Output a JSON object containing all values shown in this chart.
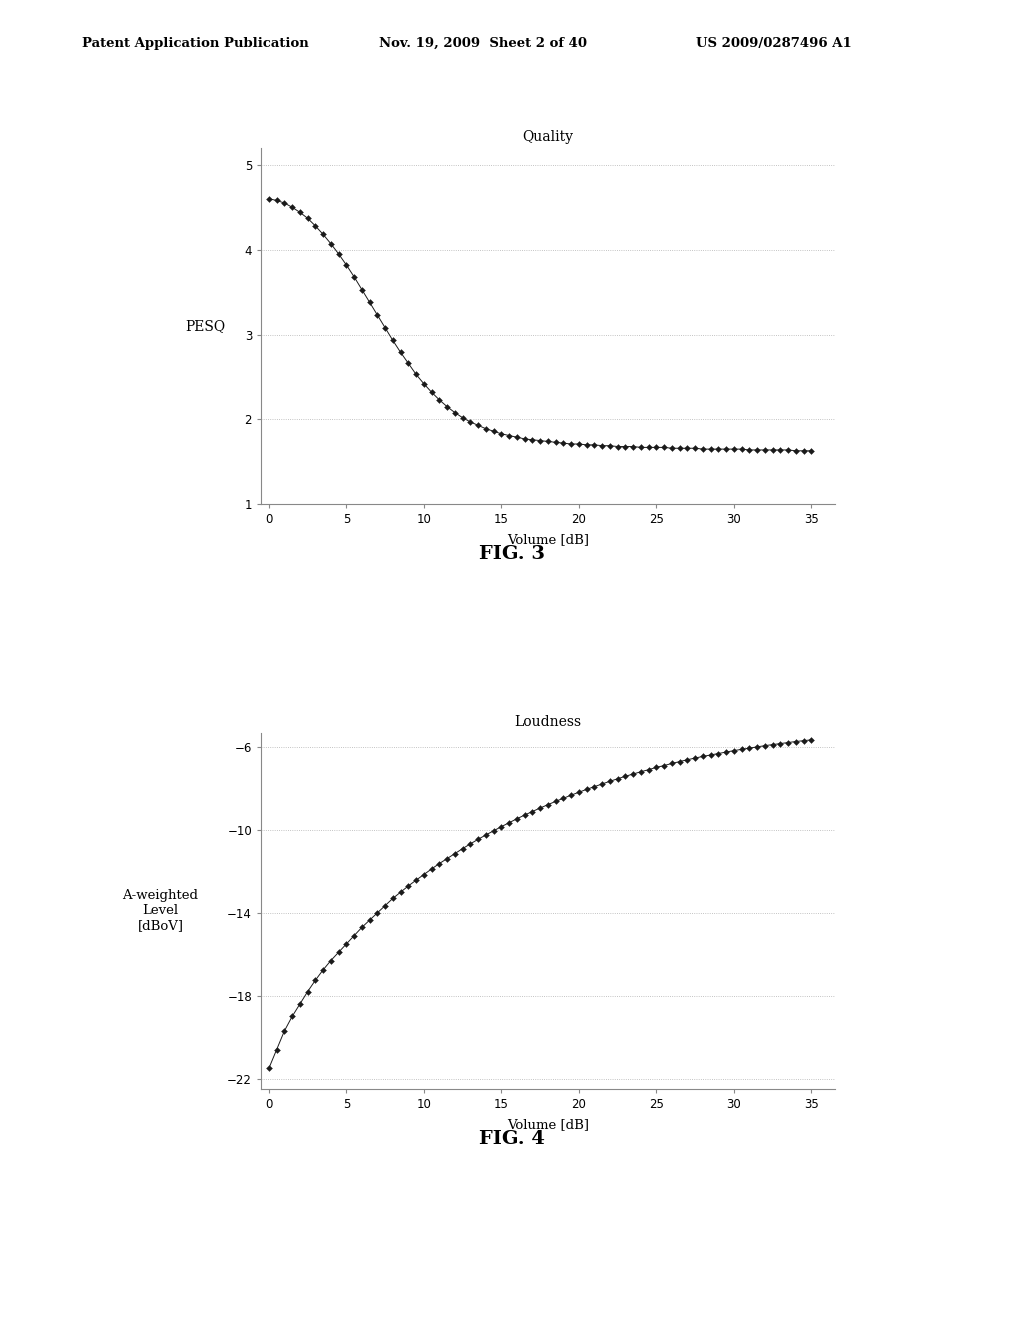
{
  "fig3": {
    "title": "Quality",
    "xlabel": "Volume [dB]",
    "ylabel": "PESQ",
    "xlim": [
      -0.5,
      36.5
    ],
    "ylim": [
      1,
      5.2
    ],
    "xticks": [
      0,
      5,
      10,
      15,
      20,
      25,
      30,
      35
    ],
    "yticks": [
      1,
      2,
      3,
      4,
      5
    ],
    "x": [
      0,
      0.5,
      1,
      1.5,
      2,
      2.5,
      3,
      3.5,
      4,
      4.5,
      5,
      5.5,
      6,
      6.5,
      7,
      7.5,
      8,
      8.5,
      9,
      9.5,
      10,
      10.5,
      11,
      11.5,
      12,
      12.5,
      13,
      13.5,
      14,
      14.5,
      15,
      15.5,
      16,
      16.5,
      17,
      17.5,
      18,
      18.5,
      19,
      19.5,
      20,
      20.5,
      21,
      21.5,
      22,
      22.5,
      23,
      23.5,
      24,
      24.5,
      25,
      25.5,
      26,
      26.5,
      27,
      27.5,
      28,
      28.5,
      29,
      29.5,
      30,
      30.5,
      31,
      31.5,
      32,
      32.5,
      33,
      33.5,
      34,
      34.5,
      35
    ],
    "y": [
      4.6,
      4.58,
      4.55,
      4.5,
      4.44,
      4.37,
      4.28,
      4.18,
      4.07,
      3.95,
      3.82,
      3.68,
      3.53,
      3.38,
      3.23,
      3.08,
      2.93,
      2.79,
      2.66,
      2.53,
      2.42,
      2.32,
      2.23,
      2.15,
      2.08,
      2.02,
      1.97,
      1.93,
      1.89,
      1.86,
      1.83,
      1.81,
      1.79,
      1.77,
      1.76,
      1.75,
      1.74,
      1.73,
      1.72,
      1.71,
      1.71,
      1.7,
      1.7,
      1.69,
      1.69,
      1.68,
      1.68,
      1.68,
      1.67,
      1.67,
      1.67,
      1.67,
      1.66,
      1.66,
      1.66,
      1.66,
      1.65,
      1.65,
      1.65,
      1.65,
      1.65,
      1.65,
      1.64,
      1.64,
      1.64,
      1.64,
      1.64,
      1.64,
      1.63,
      1.63,
      1.63
    ]
  },
  "fig4": {
    "title": "Loudness",
    "xlabel": "Volume [dB]",
    "ylabel": "A-weighted\nLevel\n[dBoV]",
    "xlim": [
      -0.5,
      36.5
    ],
    "ylim": [
      -22.5,
      -5.3
    ],
    "xticks": [
      0,
      5,
      10,
      15,
      20,
      25,
      30,
      35
    ],
    "yticks": [
      -22,
      -18,
      -14,
      -10,
      -6
    ],
    "x": [
      0,
      0.5,
      1,
      1.5,
      2,
      2.5,
      3,
      3.5,
      4,
      4.5,
      5,
      5.5,
      6,
      6.5,
      7,
      7.5,
      8,
      8.5,
      9,
      9.5,
      10,
      10.5,
      11,
      11.5,
      12,
      12.5,
      13,
      13.5,
      14,
      14.5,
      15,
      15.5,
      16,
      16.5,
      17,
      17.5,
      18,
      18.5,
      19,
      19.5,
      20,
      20.5,
      21,
      21.5,
      22,
      22.5,
      23,
      23.5,
      24,
      24.5,
      25,
      25.5,
      26,
      26.5,
      27,
      27.5,
      28,
      28.5,
      29,
      29.5,
      30,
      30.5,
      31,
      31.5,
      32,
      32.5,
      33,
      33.5,
      34,
      34.5,
      35
    ],
    "y": [
      -21.5,
      -20.6,
      -19.7,
      -19.0,
      -18.4,
      -17.8,
      -17.25,
      -16.75,
      -16.3,
      -15.9,
      -15.5,
      -15.1,
      -14.7,
      -14.35,
      -14.0,
      -13.65,
      -13.3,
      -13.0,
      -12.7,
      -12.42,
      -12.15,
      -11.88,
      -11.62,
      -11.38,
      -11.14,
      -10.9,
      -10.67,
      -10.45,
      -10.24,
      -10.04,
      -9.84,
      -9.65,
      -9.46,
      -9.28,
      -9.11,
      -8.94,
      -8.78,
      -8.62,
      -8.47,
      -8.32,
      -8.18,
      -8.04,
      -7.91,
      -7.78,
      -7.65,
      -7.53,
      -7.41,
      -7.3,
      -7.19,
      -7.09,
      -6.98,
      -6.89,
      -6.79,
      -6.7,
      -6.61,
      -6.53,
      -6.45,
      -6.38,
      -6.31,
      -6.24,
      -6.17,
      -6.11,
      -6.05,
      -5.99,
      -5.93,
      -5.88,
      -5.83,
      -5.78,
      -5.73,
      -5.69,
      -5.65
    ]
  },
  "header_left": "Patent Application Publication",
  "header_center": "Nov. 19, 2009  Sheet 2 of 40",
  "header_right": "US 2009/0287496 A1",
  "fig3_label": "FIG. 3",
  "fig4_label": "FIG. 4",
  "background_color": "#ffffff",
  "line_color": "#1a1a1a",
  "grid_color": "#b0b0b0",
  "marker": "D",
  "marker_size": 3.0,
  "line_width": 0.7
}
